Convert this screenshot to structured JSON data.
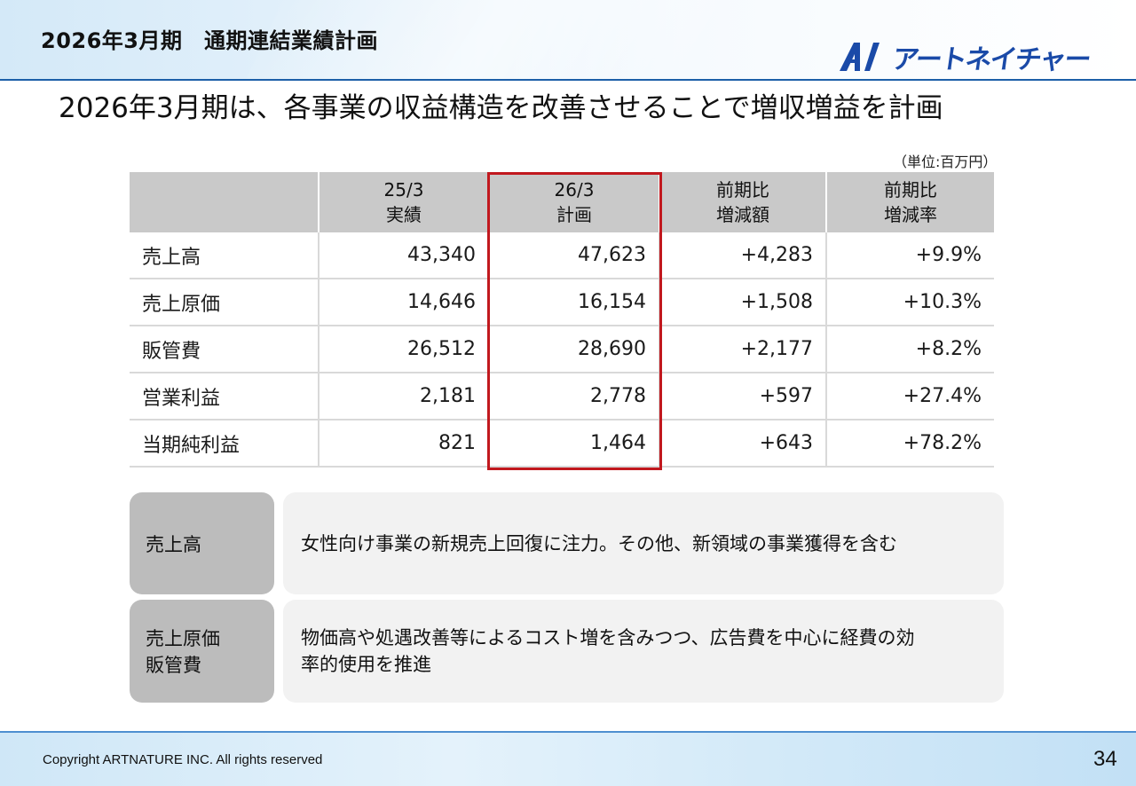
{
  "header": {
    "title": "2026年3月期　通期連結業績計画",
    "logo_text": "アートネイチャー"
  },
  "subtitle": "2026年3月期は、各事業の収益構造を改善させることで増収増益を計画",
  "unit": "（単位:百万円）",
  "table": {
    "columns": [
      {
        "line1": "",
        "line2": ""
      },
      {
        "line1": "25/3",
        "line2": "実績"
      },
      {
        "line1": "26/3",
        "line2": "計画"
      },
      {
        "line1": "前期比",
        "line2": "増減額"
      },
      {
        "line1": "前期比",
        "line2": "増減率"
      }
    ],
    "rows": [
      {
        "label": "売上高",
        "actual": "43,340",
        "plan": "47,623",
        "diff": "+4,283",
        "rate": "+9.9%"
      },
      {
        "label": "売上原価",
        "actual": "14,646",
        "plan": "16,154",
        "diff": "+1,508",
        "rate": "+10.3%"
      },
      {
        "label": "販管費",
        "actual": "26,512",
        "plan": "28,690",
        "diff": "+2,177",
        "rate": "+8.2%"
      },
      {
        "label": "営業利益",
        "actual": "2,181",
        "plan": "2,778",
        "diff": "+597",
        "rate": "+27.4%"
      },
      {
        "label": "当期純利益",
        "actual": "821",
        "plan": "1,464",
        "diff": "+643",
        "rate": "+78.2%"
      }
    ],
    "highlight_color": "#c1181e"
  },
  "notes": [
    {
      "label_lines": [
        "売上高"
      ],
      "body_lines": [
        "女性向け事業の新規売上回復に注力。その他、新領域の事業獲得を含む"
      ]
    },
    {
      "label_lines": [
        "売上原価",
        "販管費"
      ],
      "body_lines": [
        "物価高や処遇改善等によるコスト増を含みつつ、広告費を中心に経費の効",
        "率的使用を推進"
      ]
    }
  ],
  "footer": {
    "copyright": "Copyright ARTNATURE INC. All rights reserved",
    "page_number": "34"
  },
  "colors": {
    "accent_blue": "#1c5fa8",
    "logo_blue": "#1a4aa8",
    "table_header_gray": "#c9c9c9",
    "note_label_gray": "#bcbcbc",
    "note_body_gray": "#f2f2f2"
  }
}
